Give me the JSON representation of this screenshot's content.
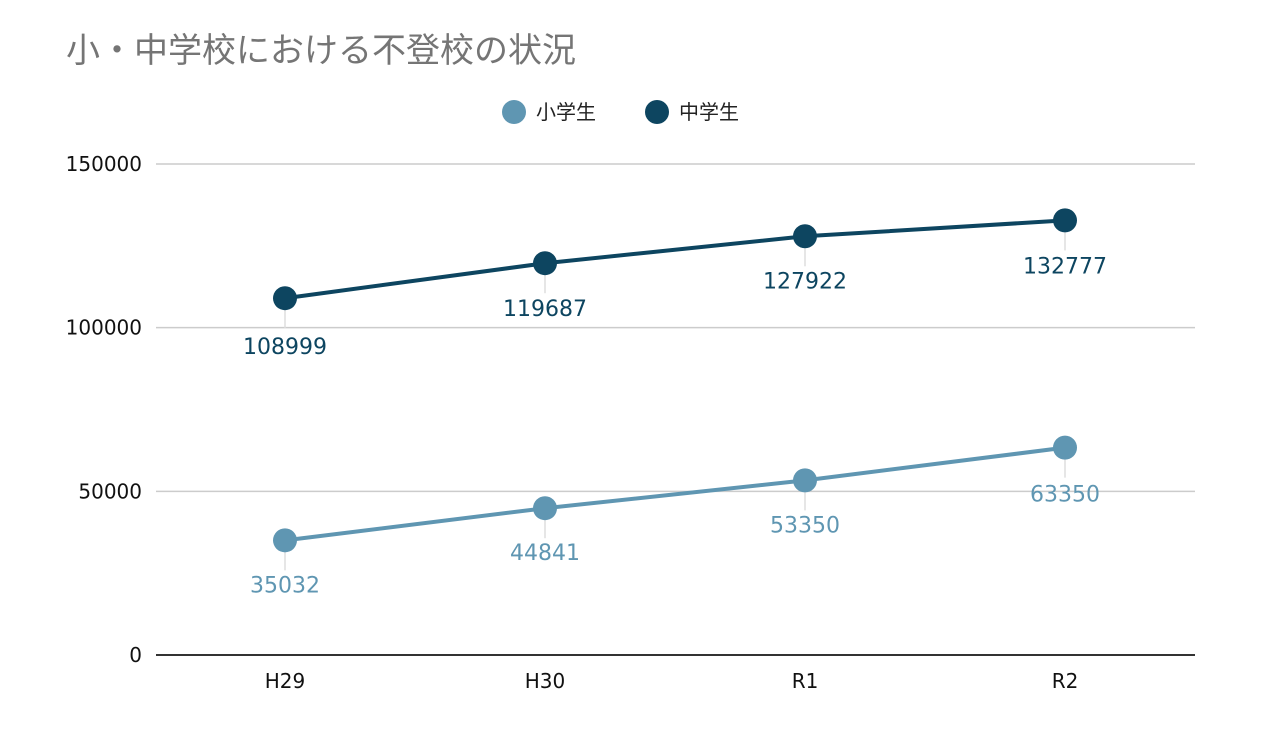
{
  "colors": {
    "elementary": "#5f96b2",
    "junior_high": "#0d4560",
    "grid": "#cccccc",
    "axis": "#333333",
    "title": "#757575"
  },
  "chart_data": {
    "type": "line",
    "title": "小・中学校における不登校の状況",
    "categories": [
      "H29",
      "H30",
      "R1",
      "R2"
    ],
    "series": [
      {
        "name": "小学生",
        "values": [
          35032,
          44841,
          53350,
          63350
        ],
        "labels": [
          "35032",
          "44841",
          "53350",
          "63350"
        ]
      },
      {
        "name": "中学生",
        "values": [
          108999,
          119687,
          127922,
          132777
        ],
        "labels": [
          "108999",
          "119687",
          "127922",
          "132777"
        ]
      }
    ],
    "ylim": [
      0,
      150000
    ],
    "yticks": [
      "0",
      "50000",
      "100000",
      "150000"
    ],
    "xlabel": "",
    "ylabel": "",
    "legend": "top-center",
    "grid": true
  }
}
